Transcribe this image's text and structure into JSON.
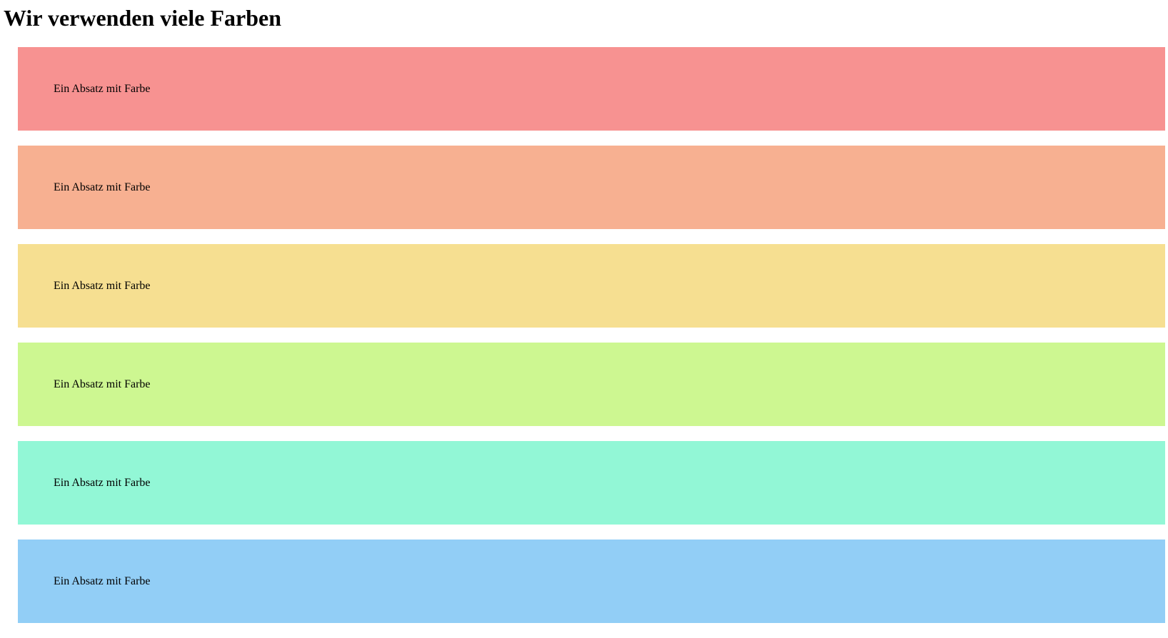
{
  "page": {
    "title": "Wir verwenden viele Farben"
  },
  "paragraphs": [
    {
      "text": "Ein Absatz mit Farbe",
      "color": "#f79291"
    },
    {
      "text": "Ein Absatz mit Farbe",
      "color": "#f7b091"
    },
    {
      "text": "Ein Absatz mit Farbe",
      "color": "#f6df91"
    },
    {
      "text": "Ein Absatz mit Farbe",
      "color": "#cdf791"
    },
    {
      "text": "Ein Absatz mit Farbe",
      "color": "#92f7d6"
    },
    {
      "text": "Ein Absatz mit Farbe",
      "color": "#92cef6"
    }
  ]
}
